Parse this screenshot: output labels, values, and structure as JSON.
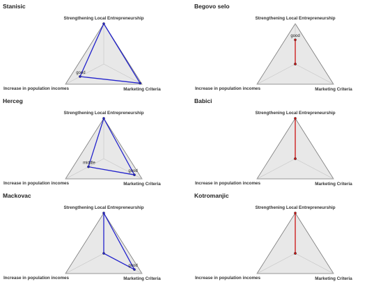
{
  "chart_data": [
    {
      "type": "radar",
      "title": "Stanisic",
      "axes": [
        "Strengthening Local Entrepreneurship",
        "Marketing Criteria",
        "Increase in population incomes"
      ],
      "values": [
        1.0,
        0.95,
        0.62
      ],
      "line_color": "#2222cc",
      "annotations": [
        {
          "text": "good",
          "axis": 2
        }
      ]
    },
    {
      "type": "radar",
      "title": "Begovo selo",
      "axes": [
        "Strengthening Local Entrepreneurship",
        "Marketing Criteria",
        "Increase in population incomes"
      ],
      "values": [
        0.6,
        0.0,
        0.0
      ],
      "line_color": "#cc1111",
      "annotations": [
        {
          "text": "good",
          "axis": 0
        }
      ]
    },
    {
      "type": "radar",
      "title": "Herceg",
      "axes": [
        "Strengthening Local Entrepreneurship",
        "Marketing Criteria",
        "Increase in population incomes"
      ],
      "values": [
        1.0,
        0.8,
        0.4
      ],
      "line_color": "#2222cc",
      "annotations": [
        {
          "text": "middle",
          "axis": 2
        },
        {
          "text": "good",
          "axis": 1
        }
      ]
    },
    {
      "type": "radar",
      "title": "Babici",
      "axes": [
        "Strengthening Local Entrepreneurship",
        "Marketing Criteria",
        "Increase in population incomes"
      ],
      "values": [
        1.0,
        0.0,
        0.0
      ],
      "line_color": "#cc1111",
      "annotations": []
    },
    {
      "type": "radar",
      "title": "Mackovac",
      "axes": [
        "Strengthening Local Entrepreneurship",
        "Marketing Criteria",
        "Increase in population incomes"
      ],
      "values": [
        1.0,
        0.8,
        0.0
      ],
      "line_color": "#2222cc",
      "annotations": [
        {
          "text": "good",
          "axis": 1
        }
      ]
    },
    {
      "type": "radar",
      "title": "Kotromanjic",
      "axes": [
        "Strengthening Local Entrepreneurship",
        "Marketing Criteria",
        "Increase in population incomes"
      ],
      "values": [
        1.0,
        0.0,
        0.0
      ],
      "line_color": "#cc1111",
      "annotations": []
    }
  ]
}
